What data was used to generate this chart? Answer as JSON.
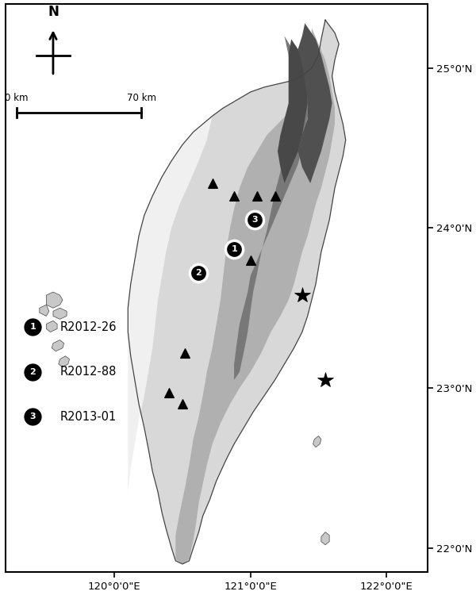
{
  "title": "",
  "xlim": [
    119.2,
    122.3
  ],
  "ylim": [
    21.85,
    25.4
  ],
  "xticks": [
    120.0,
    121.0,
    122.0
  ],
  "yticks": [
    22.0,
    23.0,
    24.0,
    25.0
  ],
  "xlabel_labels": [
    "120°0'0\"E",
    "121°0'0\"E",
    "122°0'0\"E"
  ],
  "ylabel_labels": [
    "22°0'N",
    "23°0'N",
    "24°0'N",
    "25°0'N"
  ],
  "background_color": "#ffffff",
  "ocean_color": "#ffffff",
  "solid_circles": [
    {
      "lon": 120.88,
      "lat": 23.87,
      "label": "1"
    },
    {
      "lon": 120.62,
      "lat": 23.72,
      "label": "2"
    },
    {
      "lon": 121.03,
      "lat": 24.05,
      "label": "3"
    }
  ],
  "triangles": [
    {
      "lon": 120.72,
      "lat": 24.28
    },
    {
      "lon": 120.88,
      "lat": 24.2
    },
    {
      "lon": 121.05,
      "lat": 24.2
    },
    {
      "lon": 121.18,
      "lat": 24.2
    },
    {
      "lon": 121.0,
      "lat": 23.8
    },
    {
      "lon": 120.52,
      "lat": 23.22
    },
    {
      "lon": 120.4,
      "lat": 22.97
    },
    {
      "lon": 120.5,
      "lat": 22.9
    }
  ],
  "crosses": [
    {
      "lon": 121.38,
      "lat": 23.58
    },
    {
      "lon": 121.55,
      "lat": 23.05
    }
  ],
  "legend_items": [
    {
      "symbol": "1",
      "label": "R2012-26"
    },
    {
      "symbol": "2",
      "label": "R2012-88"
    },
    {
      "symbol": "3",
      "label": "R2013-01"
    }
  ]
}
